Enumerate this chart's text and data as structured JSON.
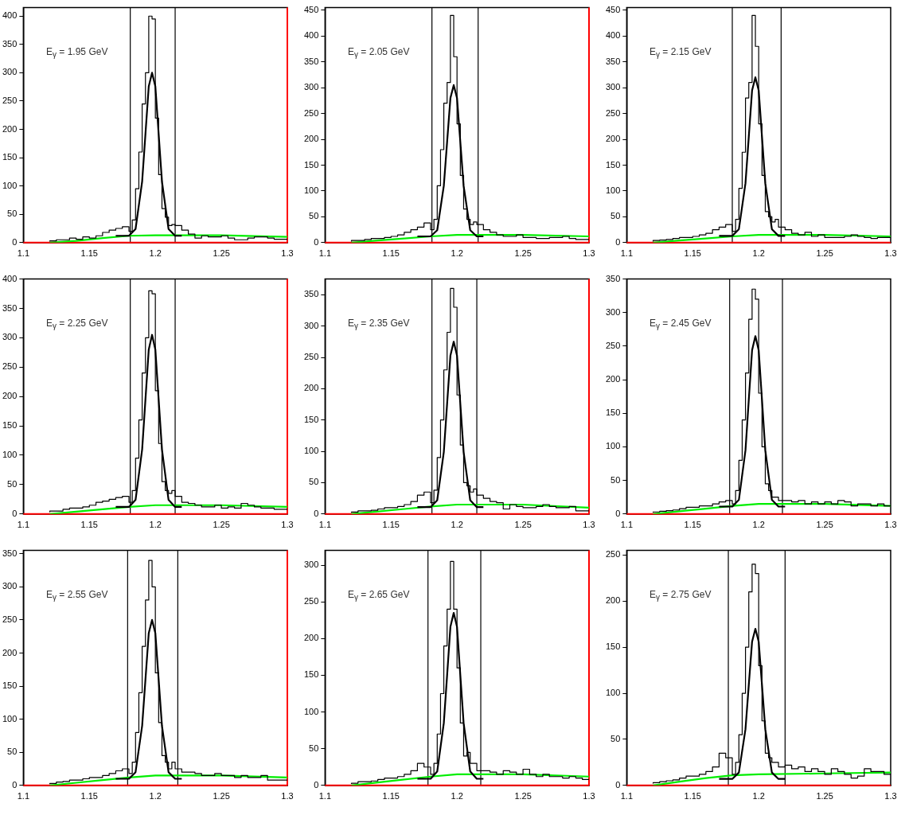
{
  "chart_data": [
    {
      "type": "step",
      "annotations": [
        "E$_{γ}$ = 1.95 GeV"
      ],
      "x": [
        1.12,
        1.125,
        1.13,
        1.135,
        1.14,
        1.145,
        1.15,
        1.155,
        1.16,
        1.165,
        1.17,
        1.175,
        1.18,
        1.1825,
        1.185,
        1.1875,
        1.19,
        1.1925,
        1.195,
        1.1975,
        1.2,
        1.2025,
        1.205,
        1.2075,
        1.21,
        1.2125,
        1.215,
        1.22,
        1.225,
        1.23,
        1.235,
        1.24,
        1.245,
        1.25,
        1.255,
        1.26,
        1.265,
        1.27,
        1.275,
        1.28,
        1.285,
        1.29,
        1.295,
        1.3
      ],
      "marker": "none",
      "legend": false,
      "grid": false,
      "xlim": [
        1.1,
        1.3
      ],
      "xticks": [
        1.1,
        1.15,
        1.2,
        1.25,
        1.3
      ],
      "ylim": [
        0,
        415
      ],
      "yticks": [
        0,
        50,
        100,
        150,
        200,
        250,
        300,
        350,
        400
      ],
      "series": [
        {
          "type": "step",
          "color": "#000000",
          "values": [
            2,
            3,
            5,
            5,
            8,
            6,
            10,
            8,
            12,
            18,
            22,
            25,
            28,
            20,
            40,
            95,
            160,
            245,
            300,
            400,
            395,
            220,
            120,
            60,
            45,
            30,
            32,
            30,
            22,
            15,
            8,
            12,
            10,
            10,
            12,
            8,
            5,
            5,
            8,
            10,
            10,
            8,
            6,
            6
          ]
        },
        {
          "type": "line",
          "color": "#000000",
          "x": [
            1.17,
            1.18,
            1.185,
            1.19,
            1.1925,
            1.195,
            1.1975,
            1.2,
            1.2025,
            1.205,
            1.21,
            1.215,
            1.22
          ],
          "values": [
            12,
            12,
            24,
            108,
            192,
            276,
            300,
            276,
            192,
            108,
            24,
            12,
            12
          ]
        },
        {
          "type": "line",
          "color": "#00ee00",
          "x": [
            1.12,
            1.14,
            1.16,
            1.18,
            1.2,
            1.25,
            1.3
          ],
          "values": [
            0,
            3,
            8,
            12,
            13,
            13,
            10
          ]
        }
      ],
      "ref_lines": [
        {
          "axis": "x",
          "value": 1.181,
          "color": "#000000"
        },
        {
          "axis": "x",
          "value": 1.215,
          "color": "#000000"
        },
        {
          "axis": "y",
          "value": 0,
          "color": "#ff0000"
        },
        {
          "axis": "x",
          "value": 1.3,
          "color": "#ff0000"
        }
      ]
    },
    {
      "type": "step",
      "annotations": [
        "E$_{γ}$ = 2.05 GeV"
      ],
      "x": [
        1.12,
        1.125,
        1.13,
        1.135,
        1.14,
        1.145,
        1.15,
        1.155,
        1.16,
        1.165,
        1.17,
        1.175,
        1.18,
        1.1825,
        1.185,
        1.1875,
        1.19,
        1.1925,
        1.195,
        1.1975,
        1.2,
        1.2025,
        1.205,
        1.2075,
        1.21,
        1.2125,
        1.215,
        1.22,
        1.225,
        1.23,
        1.235,
        1.24,
        1.245,
        1.25,
        1.255,
        1.26,
        1.265,
        1.27,
        1.275,
        1.28,
        1.285,
        1.29,
        1.295,
        1.3
      ],
      "marker": "none",
      "legend": false,
      "grid": false,
      "xlim": [
        1.1,
        1.3
      ],
      "xticks": [
        1.1,
        1.15,
        1.2,
        1.25,
        1.3
      ],
      "ylim": [
        0,
        455
      ],
      "yticks": [
        0,
        50,
        100,
        150,
        200,
        250,
        300,
        350,
        400,
        450
      ],
      "series": [
        {
          "type": "step",
          "color": "#000000",
          "values": [
            2,
            4,
            4,
            6,
            8,
            8,
            10,
            12,
            15,
            20,
            25,
            30,
            38,
            25,
            45,
            110,
            180,
            270,
            310,
            440,
            360,
            230,
            130,
            65,
            45,
            35,
            40,
            35,
            25,
            20,
            15,
            12,
            12,
            15,
            10,
            10,
            8,
            8,
            10,
            10,
            12,
            8,
            6,
            6
          ]
        },
        {
          "type": "line",
          "color": "#000000",
          "x": [
            1.17,
            1.18,
            1.185,
            1.19,
            1.1925,
            1.195,
            1.1975,
            1.2,
            1.2025,
            1.205,
            1.21,
            1.215,
            1.22
          ],
          "values": [
            12,
            12,
            24,
            110,
            195,
            280,
            305,
            280,
            195,
            110,
            24,
            12,
            12
          ]
        },
        {
          "type": "line",
          "color": "#00ee00",
          "x": [
            1.12,
            1.14,
            1.16,
            1.18,
            1.2,
            1.25,
            1.3
          ],
          "values": [
            0,
            4,
            8,
            12,
            15,
            15,
            12
          ]
        }
      ],
      "ref_lines": [
        {
          "axis": "x",
          "value": 1.181,
          "color": "#000000"
        },
        {
          "axis": "x",
          "value": 1.216,
          "color": "#000000"
        },
        {
          "axis": "y",
          "value": 0,
          "color": "#ff0000"
        },
        {
          "axis": "x",
          "value": 1.3,
          "color": "#ff0000"
        }
      ]
    },
    {
      "type": "step",
      "annotations": [
        "E$_{γ}$ = 2.15 GeV"
      ],
      "x": [
        1.12,
        1.125,
        1.13,
        1.135,
        1.14,
        1.145,
        1.15,
        1.155,
        1.16,
        1.165,
        1.17,
        1.175,
        1.18,
        1.1825,
        1.185,
        1.1875,
        1.19,
        1.1925,
        1.195,
        1.1975,
        1.2,
        1.2025,
        1.205,
        1.2075,
        1.21,
        1.2125,
        1.215,
        1.22,
        1.225,
        1.23,
        1.235,
        1.24,
        1.245,
        1.25,
        1.255,
        1.26,
        1.265,
        1.27,
        1.275,
        1.28,
        1.285,
        1.29,
        1.295,
        1.3
      ],
      "marker": "none",
      "legend": false,
      "grid": false,
      "xlim": [
        1.1,
        1.3
      ],
      "xticks": [
        1.1,
        1.15,
        1.2,
        1.25,
        1.3
      ],
      "ylim": [
        0,
        455
      ],
      "yticks": [
        0,
        50,
        100,
        150,
        200,
        250,
        300,
        350,
        400,
        450
      ],
      "series": [
        {
          "type": "step",
          "color": "#000000",
          "values": [
            2,
            4,
            5,
            6,
            8,
            10,
            10,
            12,
            15,
            18,
            25,
            30,
            35,
            22,
            45,
            105,
            175,
            280,
            310,
            440,
            380,
            230,
            130,
            60,
            50,
            40,
            45,
            30,
            25,
            18,
            15,
            20,
            12,
            15,
            10,
            10,
            10,
            12,
            15,
            12,
            10,
            8,
            10,
            10
          ]
        },
        {
          "type": "line",
          "color": "#000000",
          "x": [
            1.17,
            1.18,
            1.185,
            1.19,
            1.1925,
            1.195,
            1.1975,
            1.2,
            1.2025,
            1.205,
            1.21,
            1.215,
            1.22
          ],
          "values": [
            13,
            13,
            26,
            115,
            205,
            295,
            320,
            295,
            205,
            115,
            26,
            13,
            13
          ]
        },
        {
          "type": "line",
          "color": "#00ee00",
          "x": [
            1.12,
            1.14,
            1.16,
            1.18,
            1.2,
            1.25,
            1.3
          ],
          "values": [
            0,
            4,
            8,
            12,
            15,
            15,
            12
          ]
        }
      ],
      "ref_lines": [
        {
          "axis": "x",
          "value": 1.18,
          "color": "#000000"
        },
        {
          "axis": "x",
          "value": 1.217,
          "color": "#000000"
        },
        {
          "axis": "y",
          "value": 0,
          "color": "#ff0000"
        }
      ]
    },
    {
      "type": "step",
      "annotations": [
        "E$_{γ}$ = 2.25 GeV"
      ],
      "x": [
        1.12,
        1.125,
        1.13,
        1.135,
        1.14,
        1.145,
        1.15,
        1.155,
        1.16,
        1.165,
        1.17,
        1.175,
        1.18,
        1.1825,
        1.185,
        1.1875,
        1.19,
        1.1925,
        1.195,
        1.1975,
        1.2,
        1.2025,
        1.205,
        1.2075,
        1.21,
        1.2125,
        1.215,
        1.22,
        1.225,
        1.23,
        1.235,
        1.24,
        1.245,
        1.25,
        1.255,
        1.26,
        1.265,
        1.27,
        1.275,
        1.28,
        1.285,
        1.29,
        1.295,
        1.3
      ],
      "marker": "none",
      "legend": false,
      "grid": false,
      "xlim": [
        1.1,
        1.3
      ],
      "xticks": [
        1.1,
        1.15,
        1.2,
        1.25,
        1.3
      ],
      "ylim": [
        0,
        400
      ],
      "yticks": [
        0,
        50,
        100,
        150,
        200,
        250,
        300,
        350,
        400
      ],
      "series": [
        {
          "type": "step",
          "color": "#000000",
          "values": [
            3,
            5,
            5,
            8,
            10,
            10,
            12,
            15,
            20,
            22,
            25,
            28,
            30,
            20,
            40,
            95,
            160,
            240,
            300,
            380,
            375,
            210,
            120,
            55,
            40,
            35,
            40,
            30,
            20,
            18,
            15,
            12,
            12,
            15,
            10,
            12,
            10,
            18,
            15,
            12,
            10,
            10,
            8,
            8
          ]
        },
        {
          "type": "line",
          "color": "#000000",
          "x": [
            1.17,
            1.18,
            1.185,
            1.19,
            1.1925,
            1.195,
            1.1975,
            1.2,
            1.2025,
            1.205,
            1.21,
            1.215,
            1.22
          ],
          "values": [
            12,
            12,
            24,
            110,
            195,
            280,
            305,
            280,
            195,
            110,
            24,
            12,
            12
          ]
        },
        {
          "type": "line",
          "color": "#00ee00",
          "x": [
            1.12,
            1.14,
            1.16,
            1.18,
            1.2,
            1.25,
            1.3
          ],
          "values": [
            0,
            4,
            8,
            12,
            15,
            15,
            12
          ]
        }
      ],
      "ref_lines": [
        {
          "axis": "x",
          "value": 1.181,
          "color": "#000000"
        },
        {
          "axis": "x",
          "value": 1.215,
          "color": "#000000"
        },
        {
          "axis": "y",
          "value": 0,
          "color": "#ff0000"
        },
        {
          "axis": "x",
          "value": 1.3,
          "color": "#ff0000"
        }
      ]
    },
    {
      "type": "step",
      "annotations": [
        "E$_{γ}$ = 2.35 GeV"
      ],
      "x": [
        1.12,
        1.125,
        1.13,
        1.135,
        1.14,
        1.145,
        1.15,
        1.155,
        1.16,
        1.165,
        1.17,
        1.175,
        1.18,
        1.1825,
        1.185,
        1.1875,
        1.19,
        1.1925,
        1.195,
        1.1975,
        1.2,
        1.2025,
        1.205,
        1.2075,
        1.21,
        1.2125,
        1.215,
        1.22,
        1.225,
        1.23,
        1.235,
        1.24,
        1.245,
        1.25,
        1.255,
        1.26,
        1.265,
        1.27,
        1.275,
        1.28,
        1.285,
        1.29,
        1.295,
        1.3
      ],
      "marker": "none",
      "legend": false,
      "grid": false,
      "xlim": [
        1.1,
        1.3
      ],
      "xticks": [
        1.1,
        1.15,
        1.2,
        1.25,
        1.3
      ],
      "ylim": [
        0,
        375
      ],
      "yticks": [
        0,
        50,
        100,
        150,
        200,
        250,
        300,
        350
      ],
      "series": [
        {
          "type": "step",
          "color": "#000000",
          "values": [
            2,
            3,
            5,
            5,
            6,
            8,
            10,
            10,
            12,
            15,
            20,
            30,
            35,
            18,
            38,
            90,
            150,
            230,
            290,
            360,
            330,
            190,
            110,
            50,
            45,
            35,
            40,
            30,
            25,
            20,
            18,
            8,
            15,
            12,
            10,
            10,
            12,
            15,
            12,
            10,
            10,
            12,
            5,
            5
          ]
        },
        {
          "type": "line",
          "color": "#000000",
          "x": [
            1.17,
            1.18,
            1.185,
            1.19,
            1.1925,
            1.195,
            1.1975,
            1.2,
            1.2025,
            1.205,
            1.21,
            1.215,
            1.22
          ],
          "values": [
            11,
            11,
            22,
            99,
            176,
            253,
            275,
            253,
            176,
            99,
            22,
            11,
            11
          ]
        },
        {
          "type": "line",
          "color": "#00ee00",
          "x": [
            1.12,
            1.14,
            1.16,
            1.18,
            1.2,
            1.25,
            1.3
          ],
          "values": [
            0,
            4,
            8,
            12,
            15,
            15,
            10
          ]
        }
      ],
      "ref_lines": [
        {
          "axis": "x",
          "value": 1.181,
          "color": "#000000"
        },
        {
          "axis": "x",
          "value": 1.215,
          "color": "#000000"
        },
        {
          "axis": "y",
          "value": 0,
          "color": "#ff0000"
        },
        {
          "axis": "x",
          "value": 1.3,
          "color": "#ff0000"
        }
      ]
    },
    {
      "type": "step",
      "annotations": [
        "E$_{γ}$ = 2.45 GeV"
      ],
      "x": [
        1.12,
        1.125,
        1.13,
        1.135,
        1.14,
        1.145,
        1.15,
        1.155,
        1.16,
        1.165,
        1.17,
        1.175,
        1.18,
        1.1825,
        1.185,
        1.1875,
        1.19,
        1.1925,
        1.195,
        1.1975,
        1.2,
        1.2025,
        1.205,
        1.2075,
        1.21,
        1.2125,
        1.215,
        1.22,
        1.225,
        1.23,
        1.235,
        1.24,
        1.245,
        1.25,
        1.255,
        1.26,
        1.265,
        1.27,
        1.275,
        1.28,
        1.285,
        1.29,
        1.295,
        1.3
      ],
      "marker": "none",
      "legend": false,
      "grid": false,
      "xlim": [
        1.1,
        1.3
      ],
      "xticks": [
        1.1,
        1.15,
        1.2,
        1.25,
        1.3
      ],
      "ylim": [
        0,
        350
      ],
      "yticks": [
        0,
        50,
        100,
        150,
        200,
        250,
        300,
        350
      ],
      "series": [
        {
          "type": "step",
          "color": "#000000",
          "values": [
            2,
            3,
            4,
            5,
            6,
            8,
            10,
            10,
            12,
            12,
            15,
            18,
            20,
            15,
            35,
            80,
            140,
            210,
            290,
            335,
            320,
            180,
            100,
            45,
            35,
            25,
            25,
            20,
            20,
            18,
            20,
            15,
            18,
            15,
            18,
            15,
            20,
            18,
            12,
            15,
            15,
            12,
            15,
            12
          ]
        },
        {
          "type": "line",
          "color": "#000000",
          "x": [
            1.17,
            1.18,
            1.185,
            1.19,
            1.1925,
            1.195,
            1.1975,
            1.2,
            1.2025,
            1.205,
            1.21,
            1.215,
            1.22
          ],
          "values": [
            11,
            11,
            21,
            95,
            170,
            244,
            265,
            244,
            170,
            95,
            21,
            11,
            11
          ]
        },
        {
          "type": "line",
          "color": "#00ee00",
          "x": [
            1.12,
            1.14,
            1.16,
            1.18,
            1.2,
            1.25,
            1.3
          ],
          "values": [
            0,
            4,
            8,
            12,
            15,
            15,
            12
          ]
        }
      ],
      "ref_lines": [
        {
          "axis": "x",
          "value": 1.178,
          "color": "#000000"
        },
        {
          "axis": "x",
          "value": 1.218,
          "color": "#000000"
        },
        {
          "axis": "y",
          "value": 0,
          "color": "#ff0000"
        }
      ]
    },
    {
      "type": "step",
      "annotations": [
        "E$_{γ}$ = 2.55 GeV"
      ],
      "x": [
        1.12,
        1.125,
        1.13,
        1.135,
        1.14,
        1.145,
        1.15,
        1.155,
        1.16,
        1.165,
        1.17,
        1.175,
        1.18,
        1.1825,
        1.185,
        1.1875,
        1.19,
        1.1925,
        1.195,
        1.1975,
        1.2,
        1.2025,
        1.205,
        1.2075,
        1.21,
        1.2125,
        1.215,
        1.22,
        1.225,
        1.23,
        1.235,
        1.24,
        1.245,
        1.25,
        1.255,
        1.26,
        1.265,
        1.27,
        1.275,
        1.28,
        1.285,
        1.29,
        1.295,
        1.3
      ],
      "marker": "none",
      "legend": false,
      "grid": false,
      "xlim": [
        1.1,
        1.3
      ],
      "xticks": [
        1.1,
        1.15,
        1.2,
        1.25,
        1.3
      ],
      "ylim": [
        0,
        355
      ],
      "yticks": [
        0,
        50,
        100,
        150,
        200,
        250,
        300,
        350
      ],
      "series": [
        {
          "type": "step",
          "color": "#000000",
          "values": [
            2,
            3,
            5,
            6,
            8,
            8,
            10,
            12,
            12,
            15,
            18,
            22,
            25,
            18,
            35,
            80,
            140,
            210,
            280,
            340,
            300,
            170,
            95,
            45,
            35,
            25,
            35,
            25,
            20,
            20,
            18,
            15,
            15,
            18,
            15,
            15,
            12,
            15,
            12,
            12,
            15,
            8,
            8,
            8
          ]
        },
        {
          "type": "line",
          "color": "#000000",
          "x": [
            1.17,
            1.18,
            1.185,
            1.19,
            1.1925,
            1.195,
            1.1975,
            1.2,
            1.2025,
            1.205,
            1.21,
            1.215,
            1.22
          ],
          "values": [
            10,
            10,
            20,
            90,
            160,
            230,
            250,
            230,
            160,
            90,
            20,
            10,
            10
          ]
        },
        {
          "type": "line",
          "color": "#00ee00",
          "x": [
            1.12,
            1.14,
            1.16,
            1.18,
            1.2,
            1.25,
            1.3
          ],
          "values": [
            0,
            4,
            8,
            12,
            15,
            15,
            12
          ]
        }
      ],
      "ref_lines": [
        {
          "axis": "x",
          "value": 1.179,
          "color": "#000000"
        },
        {
          "axis": "x",
          "value": 1.217,
          "color": "#000000"
        },
        {
          "axis": "y",
          "value": 0,
          "color": "#ff0000"
        },
        {
          "axis": "x",
          "value": 1.3,
          "color": "#ff0000"
        }
      ]
    },
    {
      "type": "step",
      "annotations": [
        "E$_{γ}$ = 2.65 GeV"
      ],
      "x": [
        1.12,
        1.125,
        1.13,
        1.135,
        1.14,
        1.145,
        1.15,
        1.155,
        1.16,
        1.165,
        1.17,
        1.175,
        1.18,
        1.1825,
        1.185,
        1.1875,
        1.19,
        1.1925,
        1.195,
        1.1975,
        1.2,
        1.2025,
        1.205,
        1.2075,
        1.21,
        1.2125,
        1.215,
        1.22,
        1.225,
        1.23,
        1.235,
        1.24,
        1.245,
        1.25,
        1.255,
        1.26,
        1.265,
        1.27,
        1.275,
        1.28,
        1.285,
        1.29,
        1.295,
        1.3
      ],
      "marker": "none",
      "legend": false,
      "grid": false,
      "xlim": [
        1.1,
        1.3
      ],
      "xticks": [
        1.1,
        1.15,
        1.2,
        1.25,
        1.3
      ],
      "ylim": [
        0,
        320
      ],
      "yticks": [
        0,
        50,
        100,
        150,
        200,
        250,
        300
      ],
      "series": [
        {
          "type": "step",
          "color": "#000000",
          "values": [
            2,
            3,
            5,
            5,
            6,
            8,
            10,
            10,
            12,
            15,
            20,
            30,
            25,
            15,
            30,
            70,
            125,
            190,
            240,
            305,
            240,
            160,
            85,
            40,
            45,
            30,
            30,
            20,
            20,
            18,
            15,
            20,
            18,
            15,
            22,
            15,
            12,
            15,
            12,
            12,
            10,
            12,
            10,
            8
          ]
        },
        {
          "type": "line",
          "color": "#000000",
          "x": [
            1.17,
            1.18,
            1.185,
            1.19,
            1.1925,
            1.195,
            1.1975,
            1.2,
            1.2025,
            1.205,
            1.21,
            1.215,
            1.22
          ],
          "values": [
            9,
            9,
            19,
            85,
            150,
            216,
            235,
            216,
            150,
            85,
            19,
            9,
            9
          ]
        },
        {
          "type": "line",
          "color": "#00ee00",
          "x": [
            1.12,
            1.14,
            1.16,
            1.18,
            1.2,
            1.25,
            1.3
          ],
          "values": [
            0,
            4,
            8,
            12,
            15,
            15,
            12
          ]
        }
      ],
      "ref_lines": [
        {
          "axis": "x",
          "value": 1.178,
          "color": "#000000"
        },
        {
          "axis": "x",
          "value": 1.218,
          "color": "#000000"
        },
        {
          "axis": "y",
          "value": 0,
          "color": "#ff0000"
        },
        {
          "axis": "x",
          "value": 1.3,
          "color": "#ff0000"
        }
      ]
    },
    {
      "type": "step",
      "annotations": [
        "E$_{γ}$ = 2.75 GeV"
      ],
      "x": [
        1.12,
        1.125,
        1.13,
        1.135,
        1.14,
        1.145,
        1.15,
        1.155,
        1.16,
        1.165,
        1.17,
        1.175,
        1.18,
        1.1825,
        1.185,
        1.1875,
        1.19,
        1.1925,
        1.195,
        1.1975,
        1.2,
        1.2025,
        1.205,
        1.2075,
        1.21,
        1.2125,
        1.215,
        1.22,
        1.225,
        1.23,
        1.235,
        1.24,
        1.245,
        1.25,
        1.255,
        1.26,
        1.265,
        1.27,
        1.275,
        1.28,
        1.285,
        1.29,
        1.295,
        1.3
      ],
      "marker": "none",
      "legend": false,
      "grid": false,
      "xlim": [
        1.1,
        1.3
      ],
      "xticks": [
        1.1,
        1.15,
        1.2,
        1.25,
        1.3
      ],
      "ylim": [
        0,
        255
      ],
      "yticks": [
        0,
        50,
        100,
        150,
        200,
        250
      ],
      "series": [
        {
          "type": "step",
          "color": "#000000",
          "values": [
            2,
            3,
            4,
            5,
            6,
            8,
            10,
            10,
            12,
            15,
            20,
            35,
            30,
            12,
            25,
            55,
            100,
            150,
            210,
            240,
            230,
            130,
            70,
            35,
            30,
            25,
            25,
            20,
            22,
            18,
            20,
            15,
            18,
            15,
            12,
            18,
            15,
            12,
            8,
            10,
            18,
            15,
            15,
            12
          ]
        },
        {
          "type": "line",
          "color": "#000000",
          "x": [
            1.17,
            1.18,
            1.185,
            1.19,
            1.1925,
            1.195,
            1.1975,
            1.2,
            1.2025,
            1.205,
            1.21,
            1.215,
            1.22
          ],
          "values": [
            7,
            7,
            14,
            61,
            109,
            156,
            170,
            156,
            109,
            61,
            14,
            7,
            7
          ]
        },
        {
          "type": "line",
          "color": "#00ee00",
          "x": [
            1.12,
            1.14,
            1.16,
            1.18,
            1.2,
            1.25,
            1.3
          ],
          "values": [
            0,
            4,
            8,
            11,
            12,
            13,
            14
          ]
        }
      ],
      "ref_lines": [
        {
          "axis": "x",
          "value": 1.177,
          "color": "#000000"
        },
        {
          "axis": "x",
          "value": 1.22,
          "color": "#000000"
        },
        {
          "axis": "y",
          "value": 0,
          "color": "#ff0000"
        }
      ]
    }
  ]
}
